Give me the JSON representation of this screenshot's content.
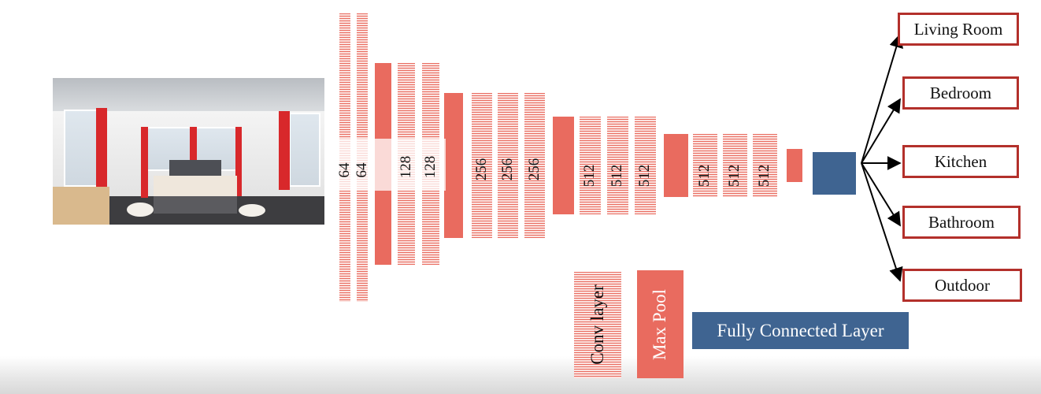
{
  "network": {
    "layer_labels": [
      "64",
      "64",
      "128",
      "128",
      "256",
      "256",
      "256",
      "512",
      "512",
      "512",
      "512",
      "512",
      "512"
    ]
  },
  "outputs": [
    "Living Room",
    "Bedroom",
    "Kitchen",
    "Bathroom",
    "Outdoor"
  ],
  "legend": {
    "conv": "Conv layer",
    "pool": "Max Pool",
    "fc": "Fully Connected Layer"
  },
  "colors": {
    "conv": "#e96b5f",
    "pool": "#e96b5f",
    "fc": "#3f6491",
    "output_border": "#b3302b"
  }
}
